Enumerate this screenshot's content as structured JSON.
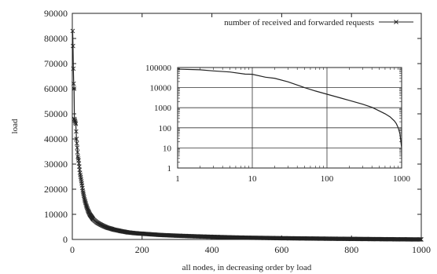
{
  "chart_data": [
    {
      "type": "line",
      "title": "",
      "xlabel": "all nodes, in decreasing order by load",
      "ylabel": "load",
      "xlim": [
        0,
        1000
      ],
      "ylim": [
        0,
        90000
      ],
      "x_ticks": [
        0,
        200,
        400,
        600,
        800,
        1000
      ],
      "y_ticks": [
        0,
        10000,
        20000,
        30000,
        40000,
        50000,
        60000,
        70000,
        80000,
        90000
      ],
      "grid": false,
      "legend": {
        "position": "top-right"
      },
      "series": [
        {
          "name": "number of received and forwarded requests",
          "marker": "x",
          "color": "#222222",
          "x": [
            1,
            2,
            3,
            4,
            5,
            6,
            7,
            8,
            9,
            10,
            12,
            14,
            16,
            18,
            20,
            22,
            25,
            28,
            30,
            35,
            40,
            45,
            50,
            60,
            70,
            80,
            90,
            100,
            120,
            140,
            160,
            180,
            200,
            250,
            300,
            350,
            400,
            450,
            500,
            550,
            600,
            650,
            700,
            750,
            800,
            850,
            900,
            950,
            1000
          ],
          "y": [
            83000,
            77000,
            68000,
            62000,
            60000,
            48000,
            47500,
            47000,
            46500,
            46000,
            40000,
            36500,
            33000,
            31500,
            29000,
            26500,
            24000,
            21500,
            19500,
            16000,
            13500,
            11500,
            10000,
            8000,
            6800,
            6000,
            5300,
            4700,
            3900,
            3300,
            2800,
            2500,
            2300,
            1800,
            1500,
            1250,
            1050,
            850,
            700,
            600,
            500,
            420,
            350,
            280,
            220,
            160,
            100,
            50,
            10
          ]
        }
      ]
    },
    {
      "type": "line",
      "title": "",
      "xscale": "log",
      "yscale": "log",
      "xlim": [
        1,
        1000
      ],
      "ylim": [
        1,
        100000
      ],
      "x_ticks": [
        1,
        10,
        100,
        1000
      ],
      "y_ticks": [
        1,
        10,
        100,
        1000,
        10000,
        100000
      ],
      "x_tick_labels": [
        "1",
        "10",
        "100",
        "1000"
      ],
      "y_tick_labels": [
        "1",
        "10",
        "100",
        "1000",
        "10000",
        "100000"
      ],
      "grid": true,
      "series": [
        {
          "name": "",
          "color": "#222222",
          "x": [
            1,
            2,
            3,
            5,
            8,
            10,
            15,
            20,
            30,
            40,
            50,
            70,
            100,
            150,
            200,
            300,
            400,
            500,
            600,
            700,
            800,
            850,
            900,
            950,
            1000
          ],
          "y": [
            83000,
            77000,
            68000,
            60000,
            47000,
            46000,
            33000,
            29000,
            19500,
            13500,
            10000,
            6800,
            4700,
            3100,
            2300,
            1500,
            1050,
            700,
            500,
            350,
            220,
            160,
            100,
            50,
            10
          ]
        }
      ]
    }
  ]
}
